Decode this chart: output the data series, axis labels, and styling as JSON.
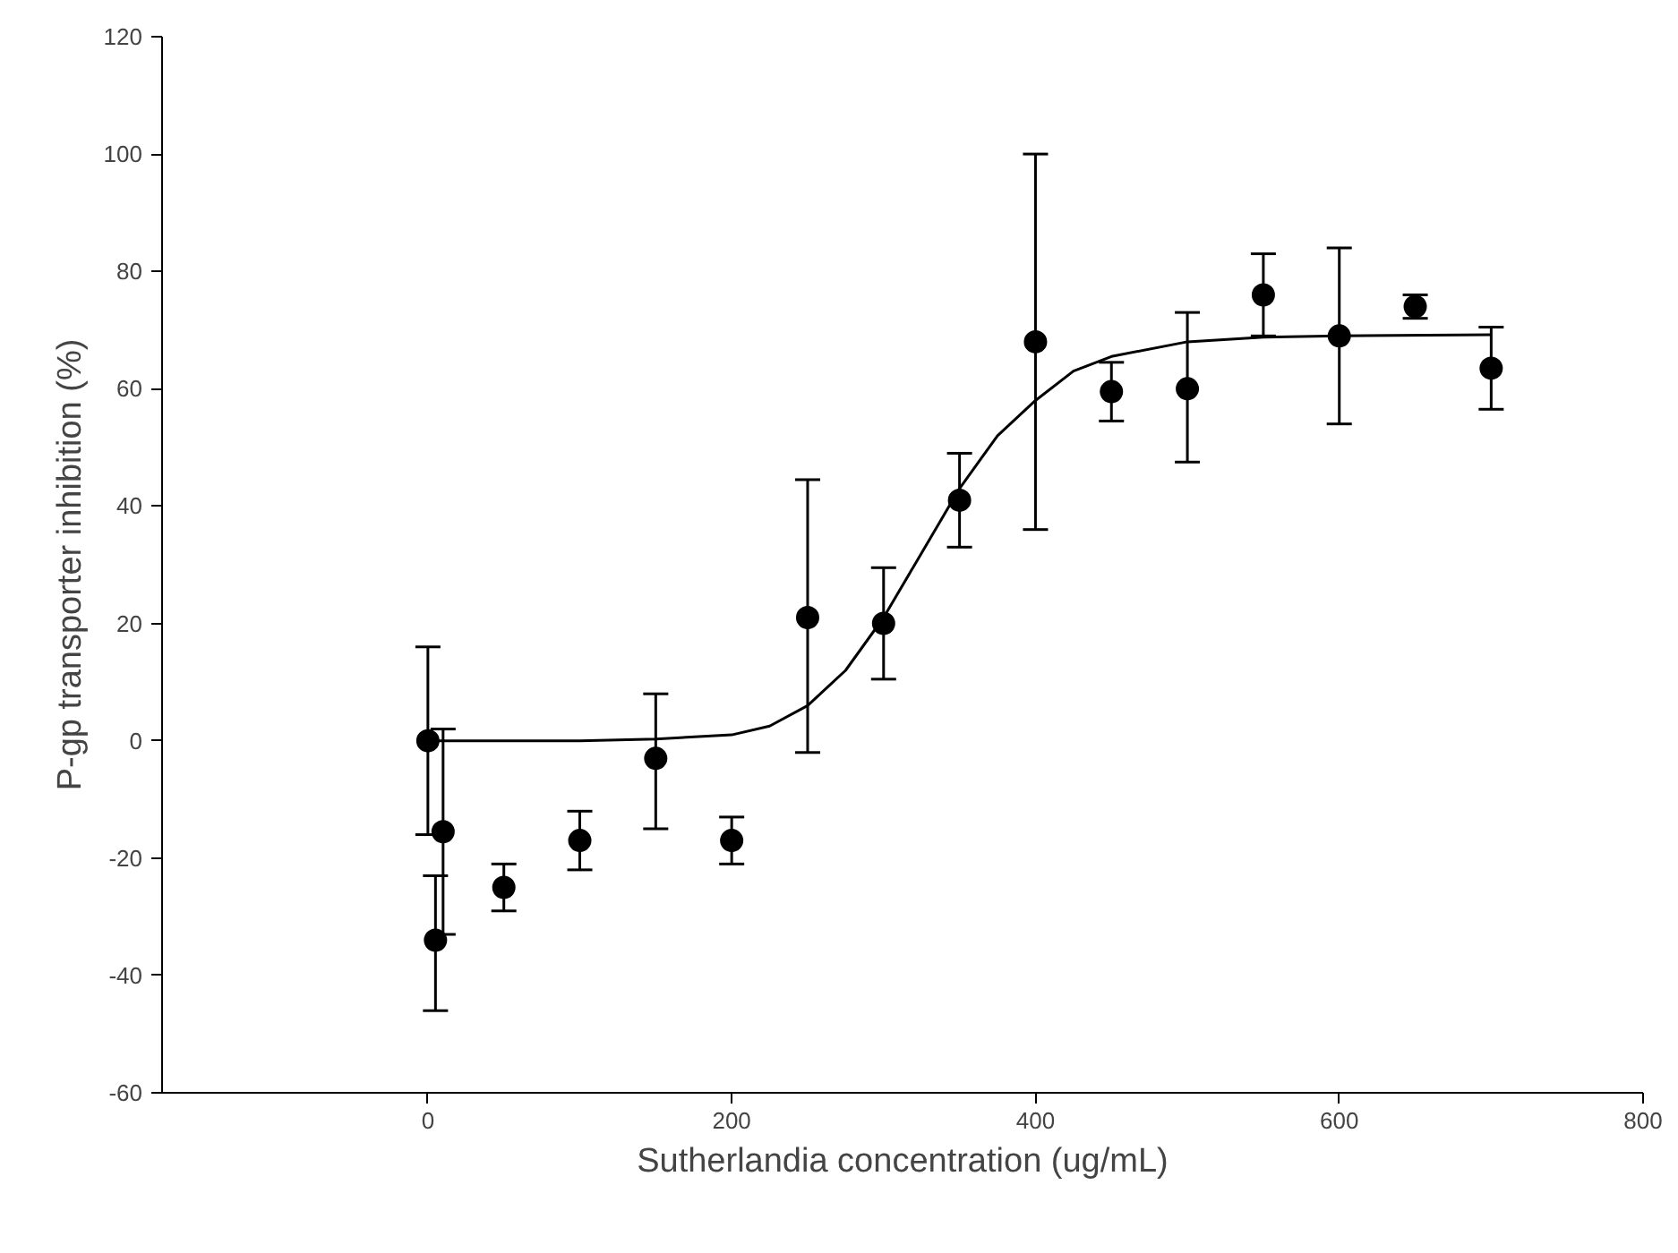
{
  "chart_data": {
    "type": "scatter",
    "xlabel": "Sutherlandia concentration (ug/mL)",
    "ylabel": "P-gp transporter inhibition (%)",
    "xlim": [
      -175,
      800
    ],
    "ylim": [
      -60,
      120
    ],
    "xticks": [
      0,
      200,
      400,
      600,
      800
    ],
    "yticks": [
      -60,
      -40,
      -20,
      0,
      20,
      40,
      60,
      80,
      100,
      120
    ],
    "grid": false,
    "series": [
      {
        "color": "#000000",
        "marker": "circle",
        "x": [
          0,
          5,
          10,
          50,
          100,
          150,
          200,
          250,
          300,
          350,
          400,
          450,
          500,
          550,
          600,
          650,
          700
        ],
        "values": [
          0,
          -34,
          -15.5,
          -25,
          -17,
          -3,
          -17,
          21,
          20,
          41,
          68,
          59.5,
          60,
          76,
          69,
          74,
          63.5
        ],
        "errors": [
          [
            -16,
            16
          ],
          [
            -46,
            -23
          ],
          [
            -33,
            2
          ],
          [
            -29,
            -21
          ],
          [
            -22,
            -12
          ],
          [
            -15,
            8
          ],
          [
            -21,
            -13
          ],
          [
            -2,
            44.5
          ],
          [
            10.5,
            29.5
          ],
          [
            33,
            49
          ],
          [
            36,
            100
          ],
          [
            54.5,
            64.5
          ],
          [
            47.5,
            73
          ],
          [
            69,
            83
          ],
          [
            54,
            84
          ],
          [
            72,
            76
          ],
          [
            56.5,
            70.5
          ]
        ]
      },
      {
        "type": "line",
        "color": "#000000",
        "marker": "none",
        "line_style": "solid",
        "x": [
          0,
          100,
          150,
          200,
          225,
          250,
          275,
          300,
          325,
          350,
          375,
          400,
          425,
          450,
          500,
          550,
          600,
          700
        ],
        "values": [
          0,
          0,
          0.3,
          1,
          2.5,
          6,
          12,
          21,
          32,
          43,
          52,
          58,
          63,
          65.5,
          68,
          68.8,
          69,
          69.2
        ]
      }
    ]
  }
}
